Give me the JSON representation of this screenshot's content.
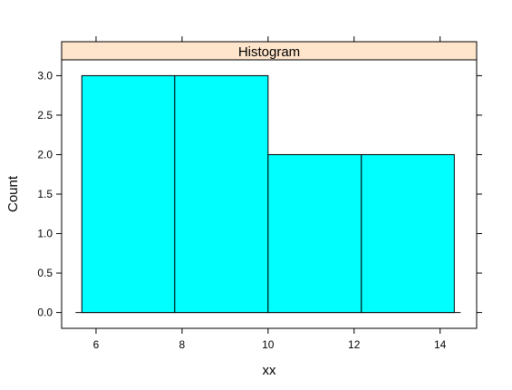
{
  "chart_data": {
    "type": "bar",
    "title": "Histogram",
    "xlabel": "xx",
    "ylabel": "Count",
    "bins": [
      {
        "from": 5.67,
        "to": 7.83,
        "count": 3
      },
      {
        "from": 7.83,
        "to": 10.0,
        "count": 3
      },
      {
        "from": 10.0,
        "to": 12.17,
        "count": 2
      },
      {
        "from": 12.17,
        "to": 14.33,
        "count": 2
      }
    ],
    "xlim": [
      5.2,
      14.85
    ],
    "ylim": [
      -0.2,
      3.2
    ],
    "x_ticks": [
      6,
      8,
      10,
      12,
      14
    ],
    "y_ticks": [
      0.0,
      0.5,
      1.0,
      1.5,
      2.0,
      2.5,
      3.0
    ],
    "y_tick_labels": [
      "0.0",
      "0.5",
      "1.0",
      "1.5",
      "2.0",
      "2.5",
      "3.0"
    ],
    "grid": false,
    "legend": "none",
    "colors": {
      "bar_fill": "#00ffff",
      "strip_fill": "#ffe5cc",
      "frame": "#000000"
    }
  }
}
